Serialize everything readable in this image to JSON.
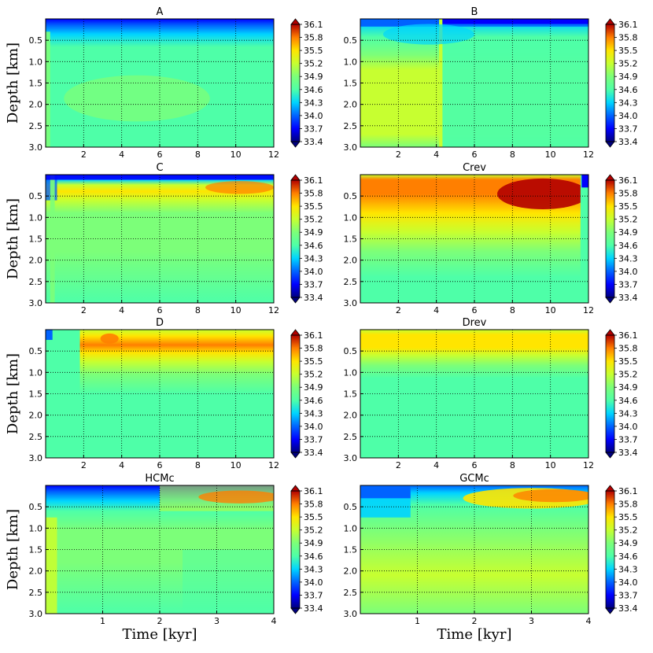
{
  "chart_data": {
    "type": "heatmap",
    "ylabel": "Depth [km]",
    "xlabel": "Time [kyr]",
    "yticks": [
      "0.5",
      "1.0",
      "1.5",
      "2.0",
      "2.5",
      "3.0"
    ],
    "ylim": [
      3.0,
      0.0
    ],
    "colorbar": {
      "min": 33.4,
      "max": 36.1,
      "ticks": [
        "36.1",
        "35.8",
        "35.5",
        "35.2",
        "34.9",
        "34.6",
        "34.3",
        "34.0",
        "33.7",
        "33.4"
      ]
    },
    "colors": {
      "c33_4": "#00007f",
      "c33_7": "#0000ff",
      "c34_0": "#0063ff",
      "c34_3": "#00d4ff",
      "c34_6": "#4effa8",
      "c34_9": "#7cff79",
      "c35_2": "#c7ff30",
      "c35_5": "#ffe500",
      "c35_8": "#ff7f00",
      "c36_1": "#b20000"
    },
    "panels": [
      {
        "title": "A",
        "xticks": [
          "2",
          "4",
          "6",
          "8",
          "10",
          "12"
        ],
        "xmax": 12,
        "description": "fresh (~33.7) surface layer thinning over time, interior ~34.8-34.9"
      },
      {
        "title": "B",
        "xticks": [
          "2",
          "4",
          "6",
          "8",
          "10",
          "12"
        ],
        "xmax": 12,
        "description": "fresh surface, saltier (~35.1) deep water before 4 kyr"
      },
      {
        "title": "C",
        "xticks": [
          "2",
          "4",
          "6",
          "8",
          "10",
          "12"
        ],
        "xmax": 12,
        "description": "salty (~35.7) layer near 0.3 km growing over time"
      },
      {
        "title": "Crev",
        "xticks": [
          "2",
          "4",
          "6",
          "8",
          "10",
          "12"
        ],
        "xmax": 12,
        "description": "very salty (~36.1) upper 1 km, fresh at end"
      },
      {
        "title": "D",
        "xticks": [
          "2",
          "4",
          "6",
          "8",
          "10",
          "12"
        ],
        "xmax": 12,
        "description": "salty (~35.6) layer near 0.2 km"
      },
      {
        "title": "Drev",
        "xticks": [
          "2",
          "4",
          "6",
          "8",
          "10",
          "12"
        ],
        "xmax": 12,
        "description": "salty (~35.5) near-surface layer, interior ~34.7"
      },
      {
        "title": "HCMc",
        "xticks": [
          "1",
          "2",
          "3",
          "4"
        ],
        "xmax": 4,
        "description": "fresh surface early, salty (~35.7) near 0.3 km late"
      },
      {
        "title": "GCMc",
        "xticks": [
          "1",
          "2",
          "3",
          "4"
        ],
        "xmax": 4,
        "description": "fresh surface early, salty (~35.8) upper layer late"
      }
    ]
  }
}
